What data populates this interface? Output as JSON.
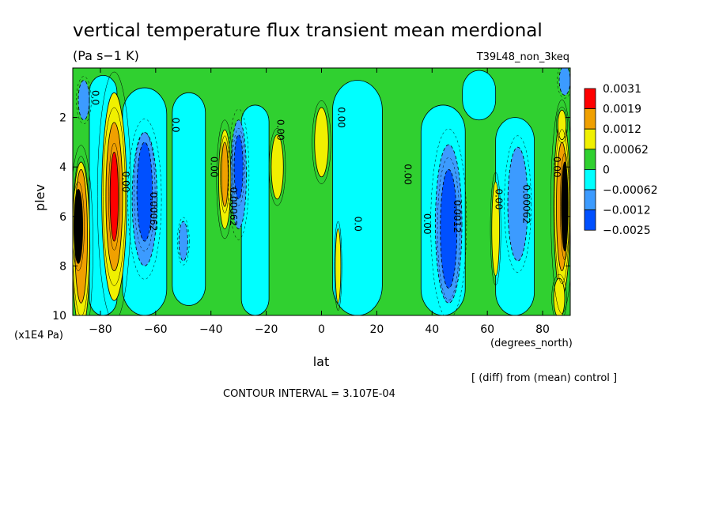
{
  "chart_data": {
    "type": "heatmap",
    "title": "vertical temperature flux transient mean merdional",
    "units": "(Pa s−1 K)",
    "experiment": "T39L48_non_3keq",
    "xlabel": "lat",
    "xunits": "(degrees_north)",
    "ylabel": "plev",
    "yunits": "(x1E4 Pa)",
    "x_ticks": [
      -80,
      -60,
      -40,
      -20,
      0,
      20,
      40,
      60,
      80
    ],
    "x_tick_labels": [
      "−80",
      "−60",
      "−40",
      "−20",
      "0",
      "20",
      "40",
      "60",
      "80"
    ],
    "xlim": [
      -90,
      90
    ],
    "y_ticks": [
      2,
      4,
      6,
      8,
      10
    ],
    "y_tick_labels": [
      "2",
      "4",
      "6",
      "8",
      "10"
    ],
    "ylim": [
      10,
      0
    ],
    "colorbar": {
      "levels": [
        "0.0031",
        "0.0019",
        "0.0012",
        "0.00062",
        "0",
        "−0.00062",
        "−0.0012",
        "−0.0025"
      ],
      "colors": [
        "#ff0000",
        "#f0a000",
        "#f0f000",
        "#30d030",
        "#00ffff",
        "#3c9bff",
        "#0050ff"
      ]
    },
    "contour_labels": [
      "0.00",
      "0.0",
      "0.00062",
      "0.0012"
    ],
    "footer_note": "[ (diff) from (mean) control ]",
    "contour_interval": "CONTOUR INTERVAL = 3.107E-04",
    "plot_colors": {
      "background": "#30d030",
      "neg1": "#00ffff",
      "neg2": "#3c9bff",
      "neg3": "#0050ff",
      "pos2": "#f0f000",
      "pos3": "#f0a000",
      "pos4": "#ff0000",
      "max": "#000000"
    },
    "features": [
      {
        "kind": "band",
        "lat": -79,
        "half_width": 5,
        "p_top": 0.3,
        "p_bot": 10,
        "level": "neg1"
      },
      {
        "kind": "band",
        "lat": -64,
        "half_width": 8,
        "p_top": 0.8,
        "p_bot": 10,
        "level": "neg1"
      },
      {
        "kind": "band",
        "lat": -48,
        "half_width": 6,
        "p_top": 1,
        "p_bot": 9.6,
        "level": "neg1"
      },
      {
        "kind": "band",
        "lat": -24,
        "half_width": 5,
        "p_top": 1.5,
        "p_bot": 10,
        "level": "neg1"
      },
      {
        "kind": "band",
        "lat": 13,
        "half_width": 9,
        "p_top": 0.5,
        "p_bot": 10,
        "level": "neg1"
      },
      {
        "kind": "band",
        "lat": 44,
        "half_width": 8,
        "p_top": 1.5,
        "p_bot": 10,
        "level": "neg1"
      },
      {
        "kind": "band",
        "lat": 70,
        "half_width": 7,
        "p_top": 2,
        "p_bot": 10,
        "level": "neg1"
      },
      {
        "kind": "band",
        "lat": 57,
        "half_width": 6,
        "p_top": 0.1,
        "p_bot": 2.1,
        "level": "neg1"
      },
      {
        "kind": "blob",
        "lat": -64,
        "p": 5.3,
        "rlat": 4.5,
        "rp": 2.7,
        "level": "neg2"
      },
      {
        "kind": "blob",
        "lat": -64,
        "p": 5,
        "rlat": 2.8,
        "rp": 2.0,
        "level": "neg3"
      },
      {
        "kind": "blob",
        "lat": -30,
        "p": 4.3,
        "rlat": 2.8,
        "rp": 2.2,
        "level": "neg2"
      },
      {
        "kind": "blob",
        "lat": -30,
        "p": 4,
        "rlat": 1.6,
        "rp": 1.3,
        "level": "neg3"
      },
      {
        "kind": "blob",
        "lat": -50,
        "p": 7,
        "rlat": 1.6,
        "rp": 0.8,
        "level": "neg2"
      },
      {
        "kind": "blob",
        "lat": 46,
        "p": 6.3,
        "rlat": 4.8,
        "rp": 3.2,
        "level": "neg2"
      },
      {
        "kind": "blob",
        "lat": 46,
        "p": 6.5,
        "rlat": 3,
        "rp": 2.4,
        "level": "neg3"
      },
      {
        "kind": "blob",
        "lat": 71,
        "p": 5.5,
        "rlat": 3.6,
        "rp": 2.3,
        "level": "neg2"
      },
      {
        "kind": "blob",
        "lat": 88,
        "p": 0.5,
        "rlat": 2,
        "rp": 0.6,
        "level": "neg2"
      },
      {
        "kind": "blob",
        "lat": -86,
        "p": 1.3,
        "rlat": 2,
        "rp": 0.8,
        "level": "neg2"
      },
      {
        "kind": "blob",
        "lat": -75,
        "p": 5.2,
        "rlat": 4.5,
        "rp": 4.2,
        "level": "pos2"
      },
      {
        "kind": "blob",
        "lat": -75,
        "p": 5.2,
        "rlat": 3,
        "rp": 3.0,
        "level": "pos3"
      },
      {
        "kind": "blob",
        "lat": -75,
        "p": 5.2,
        "rlat": 1.5,
        "rp": 1.8,
        "level": "pos4"
      },
      {
        "kind": "blob",
        "lat": -87,
        "p": 7.2,
        "rlat": 3.2,
        "rp": 3.4,
        "level": "pos2"
      },
      {
        "kind": "blob",
        "lat": -87,
        "p": 6.8,
        "rlat": 2.3,
        "rp": 2.7,
        "level": "pos3"
      },
      {
        "kind": "blob",
        "lat": -88,
        "p": 6.4,
        "rlat": 1.6,
        "rp": 1.5,
        "level": "max"
      },
      {
        "kind": "blob",
        "lat": -35,
        "p": 4.5,
        "rlat": 2.2,
        "rp": 2.0,
        "level": "pos2"
      },
      {
        "kind": "blob",
        "lat": -35,
        "p": 4.3,
        "rlat": 1.2,
        "rp": 1.3,
        "level": "pos3"
      },
      {
        "kind": "blob",
        "lat": -16,
        "p": 4.0,
        "rlat": 2.2,
        "rp": 1.3,
        "level": "pos2"
      },
      {
        "kind": "blob",
        "lat": 0,
        "p": 3.0,
        "rlat": 2.5,
        "rp": 1.4,
        "level": "pos2"
      },
      {
        "kind": "blob",
        "lat": 6,
        "p": 8.0,
        "rlat": 1.0,
        "rp": 1.5,
        "level": "pos2"
      },
      {
        "kind": "blob",
        "lat": 63,
        "p": 6.5,
        "rlat": 1.4,
        "rp": 1.9,
        "level": "pos2"
      },
      {
        "kind": "blob",
        "lat": 87,
        "p": 5.6,
        "rlat": 3.0,
        "rp": 3.6,
        "level": "pos2"
      },
      {
        "kind": "blob",
        "lat": 87,
        "p": 5.6,
        "rlat": 2.0,
        "rp": 2.6,
        "level": "pos3"
      },
      {
        "kind": "blob",
        "lat": 88,
        "p": 5.6,
        "rlat": 1.2,
        "rp": 1.8,
        "level": "max"
      },
      {
        "kind": "blob",
        "lat": 86,
        "p": 9.3,
        "rlat": 2.0,
        "rp": 0.8,
        "level": "pos2"
      },
      {
        "kind": "blob",
        "lat": 87,
        "p": 2.3,
        "rlat": 1.5,
        "rp": 0.6,
        "level": "pos2"
      }
    ]
  }
}
